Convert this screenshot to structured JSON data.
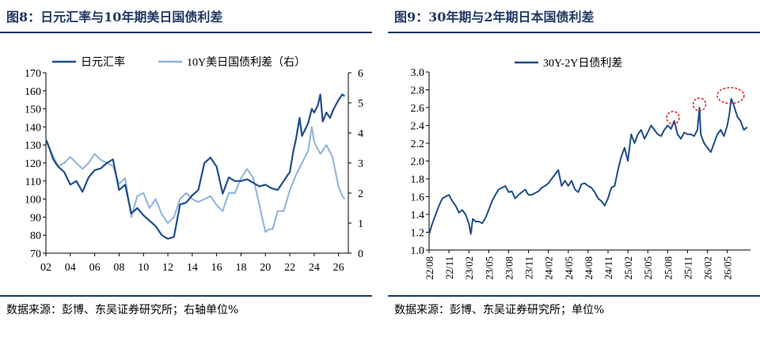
{
  "left": {
    "title": "图8：日元汇率与10年期美日国债利差",
    "source": "数据来源：彭博、东吴证券研究所；右轴单位%"
  },
  "right": {
    "title": "图9：30年期与2年期日本国债利差",
    "source": "数据来源：彭博、东吴证券研究所；单位%"
  },
  "colors": {
    "dark_blue": "#1f4e8c",
    "light_blue": "#8fb1dc",
    "title_blue": "#1f3864",
    "marker_red": "#e02020"
  },
  "chart_data": [
    {
      "type": "line",
      "x_type": "year",
      "x_ticks": [
        "02",
        "04",
        "06",
        "08",
        "10",
        "12",
        "14",
        "16",
        "18",
        "20",
        "22",
        "24",
        "26"
      ],
      "x_tick_years": [
        2002,
        2004,
        2006,
        2008,
        2010,
        2012,
        2014,
        2016,
        2018,
        2020,
        2022,
        2024,
        2026
      ],
      "xlim": [
        2002,
        2026.8
      ],
      "ylim": [
        70,
        170
      ],
      "y_ticks": [
        70,
        80,
        90,
        100,
        110,
        120,
        130,
        140,
        150,
        160,
        170
      ],
      "y2lim": [
        0,
        6
      ],
      "y2_ticks": [
        0,
        1,
        2,
        3,
        4,
        5,
        6
      ],
      "legend_position": "top-left",
      "grid": false,
      "series": [
        {
          "name": "日元汇率",
          "axis": "left",
          "color": "#1f4e8c",
          "x": [
            2002,
            2002.3,
            2002.6,
            2003,
            2003.5,
            2004,
            2004.5,
            2005,
            2005.5,
            2006,
            2006.5,
            2007,
            2007.5,
            2008,
            2008.5,
            2009,
            2009.5,
            2010,
            2010.5,
            2011,
            2011.5,
            2012,
            2012.5,
            2013,
            2013.5,
            2014,
            2014.5,
            2015,
            2015.5,
            2016,
            2016.5,
            2017,
            2017.5,
            2018,
            2018.5,
            2019,
            2019.5,
            2020,
            2020.5,
            2021,
            2021.5,
            2022,
            2022.3,
            2022.5,
            2022.8,
            2023,
            2023.5,
            2023.8,
            2024,
            2024.3,
            2024.5,
            2024.7,
            2025,
            2025.3,
            2025.6,
            2026,
            2026.3,
            2026.5
          ],
          "y": [
            133,
            128,
            122,
            118,
            115,
            108,
            110,
            104,
            112,
            116,
            117,
            120,
            122,
            105,
            108,
            92,
            95,
            91,
            88,
            85,
            80,
            78,
            79,
            97,
            98,
            102,
            105,
            120,
            123,
            118,
            103,
            112,
            110,
            110,
            111,
            109,
            107,
            108,
            106,
            105,
            110,
            115,
            127,
            133,
            145,
            135,
            142,
            150,
            148,
            152,
            158,
            143,
            148,
            145,
            150,
            155,
            158,
            157
          ]
        },
        {
          "name": "10Y美日国债利差（右）",
          "axis": "right",
          "color": "#8fb1dc",
          "x": [
            2002,
            2002.5,
            2003,
            2003.5,
            2004,
            2004.5,
            2005,
            2005.5,
            2006,
            2006.5,
            2007,
            2007.5,
            2008,
            2008.5,
            2009,
            2009.5,
            2010,
            2010.5,
            2011,
            2011.5,
            2012,
            2012.5,
            2013,
            2013.5,
            2014,
            2014.5,
            2015,
            2015.5,
            2016,
            2016.5,
            2017,
            2017.5,
            2018,
            2018.5,
            2019,
            2019.5,
            2020,
            2020.3,
            2020.6,
            2021,
            2021.5,
            2022,
            2022.5,
            2023,
            2023.5,
            2023.8,
            2024,
            2024.5,
            2025,
            2025.5,
            2026,
            2026.3,
            2026.5
          ],
          "y": [
            3.8,
            3.3,
            2.9,
            3.0,
            3.2,
            3.0,
            2.8,
            3.0,
            3.3,
            3.1,
            3.0,
            2.9,
            2.3,
            2.5,
            1.2,
            1.9,
            2.0,
            1.5,
            1.8,
            1.3,
            1.0,
            1.2,
            1.8,
            2.0,
            1.8,
            1.7,
            1.8,
            1.9,
            1.6,
            1.4,
            2.0,
            2.0,
            2.5,
            2.8,
            2.5,
            1.6,
            0.7,
            0.8,
            0.8,
            1.4,
            1.4,
            2.1,
            2.6,
            3.0,
            3.4,
            4.2,
            3.7,
            3.3,
            3.6,
            3.2,
            2.2,
            1.9,
            1.8
          ]
        }
      ]
    },
    {
      "type": "line",
      "x_type": "month",
      "x_ticks": [
        "22/08",
        "22/11",
        "23/02",
        "23/05",
        "23/08",
        "23/11",
        "24/02",
        "24/05",
        "24/08",
        "24/11",
        "25/02",
        "25/05",
        "25/08",
        "25/11",
        "26/02",
        "26/05"
      ],
      "x_tick_months": [
        0,
        3,
        6,
        9,
        12,
        15,
        18,
        21,
        24,
        27,
        30,
        33,
        36,
        39,
        42,
        45
      ],
      "xlim": [
        0,
        48.5
      ],
      "ylim": [
        1.0,
        3.0
      ],
      "y_ticks": [
        1.0,
        1.2,
        1.4,
        1.6,
        1.8,
        2.0,
        2.2,
        2.4,
        2.6,
        2.8,
        3.0
      ],
      "legend_position": "top-left",
      "grid": false,
      "highlight_circles_months": [
        36.8,
        40.8,
        45.5
      ],
      "series": [
        {
          "name": "30Y-2Y日债利差",
          "color": "#1f4e8c",
          "x": [
            0,
            0.5,
            1,
            1.5,
            2,
            2.5,
            3,
            3.5,
            4,
            4.5,
            5,
            5.5,
            6,
            6.3,
            6.6,
            7,
            7.5,
            8,
            8.5,
            9,
            9.5,
            10,
            10.5,
            11,
            11.5,
            12,
            12.5,
            13,
            13.5,
            14,
            14.5,
            15,
            15.5,
            16,
            16.5,
            17,
            17.5,
            18,
            18.5,
            19,
            19.5,
            20,
            20.5,
            21,
            21.5,
            22,
            22.5,
            23,
            23.5,
            24,
            24.5,
            25,
            25.5,
            26,
            26.5,
            27,
            27.5,
            28,
            28.5,
            29,
            29.5,
            30,
            30.5,
            31,
            31.5,
            32,
            32.5,
            33,
            33.5,
            34,
            34.5,
            35,
            35.5,
            36,
            36.5,
            37,
            37.5,
            38,
            38.5,
            39,
            39.5,
            40,
            40.5,
            40.8,
            41,
            41.5,
            42,
            42.5,
            43,
            43.5,
            44,
            44.5,
            45,
            45.3,
            45.6,
            46,
            46.5,
            47,
            47.5,
            48
          ],
          "y": [
            1.18,
            1.3,
            1.4,
            1.5,
            1.58,
            1.6,
            1.62,
            1.55,
            1.5,
            1.42,
            1.45,
            1.4,
            1.3,
            1.18,
            1.35,
            1.32,
            1.32,
            1.3,
            1.36,
            1.45,
            1.55,
            1.62,
            1.68,
            1.7,
            1.72,
            1.65,
            1.66,
            1.58,
            1.62,
            1.65,
            1.68,
            1.62,
            1.62,
            1.64,
            1.66,
            1.7,
            1.72,
            1.75,
            1.8,
            1.85,
            1.9,
            1.72,
            1.78,
            1.72,
            1.78,
            1.68,
            1.65,
            1.74,
            1.75,
            1.72,
            1.7,
            1.65,
            1.58,
            1.55,
            1.5,
            1.58,
            1.7,
            1.72,
            1.9,
            2.05,
            2.15,
            2.0,
            2.3,
            2.2,
            2.3,
            2.35,
            2.25,
            2.32,
            2.4,
            2.35,
            2.3,
            2.28,
            2.35,
            2.4,
            2.36,
            2.45,
            2.3,
            2.25,
            2.32,
            2.3,
            2.3,
            2.28,
            2.35,
            2.6,
            2.3,
            2.2,
            2.15,
            2.1,
            2.2,
            2.3,
            2.35,
            2.28,
            2.4,
            2.52,
            2.7,
            2.62,
            2.5,
            2.45,
            2.35,
            2.38
          ]
        }
      ]
    }
  ]
}
